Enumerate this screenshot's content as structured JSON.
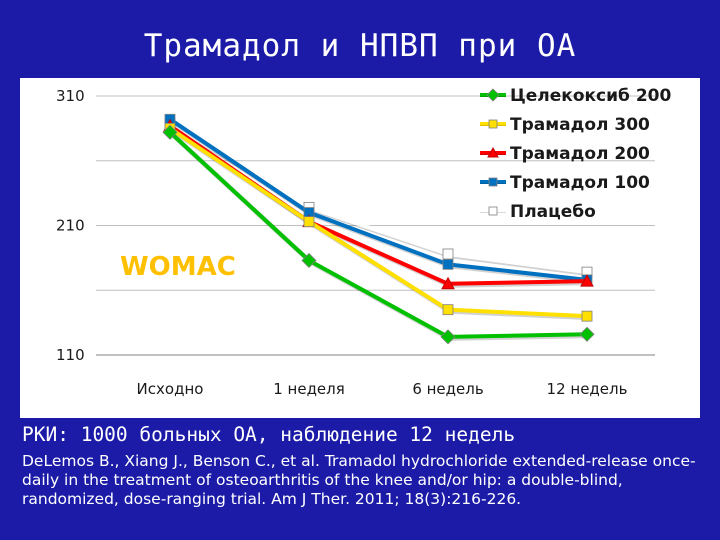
{
  "slide": {
    "title": "Трамадол и НПВП при ОА",
    "study_line": "РКИ: 1000 больных ОА, наблюдение 12 недель",
    "citation": "DeLemos B., Xiang J., Benson C., et al. Tramadol hydrochloride extended-release once-daily in the treatment of osteoarthritis of the knee and/or hip: a double-blind, randomized, dose-ranging trial. Am J Ther. 2011; 18(3):216-226."
  },
  "chart_data": {
    "type": "line",
    "title": "",
    "xlabel": "",
    "ylabel": "",
    "annotation": "WOMAC",
    "categories": [
      "Исходно",
      "1 неделя",
      "6 недель",
      "12 недель"
    ],
    "ylim": [
      110,
      310
    ],
    "yticks": [
      "310",
      "210",
      "110"
    ],
    "grid": true,
    "legend_position": "top-right",
    "series": [
      {
        "name": "Целекоксиб 200",
        "color": "#00c000",
        "marker": "diamond",
        "values": [
          282,
          183,
          124,
          126
        ]
      },
      {
        "name": "Трамадол 300",
        "color": "#ffe000",
        "marker": "square",
        "values": [
          285,
          213,
          145,
          140
        ]
      },
      {
        "name": "Трамадол 200",
        "color": "#ff0000",
        "marker": "triangle",
        "values": [
          287,
          213,
          165,
          167
        ]
      },
      {
        "name": "Трамадол 100",
        "color": "#0070c0",
        "marker": "square",
        "values": [
          292,
          220,
          180,
          168
        ]
      },
      {
        "name": "Плацебо",
        "color": "#ffffff",
        "marker": "square",
        "values": [
          289,
          224,
          188,
          174
        ]
      }
    ]
  }
}
